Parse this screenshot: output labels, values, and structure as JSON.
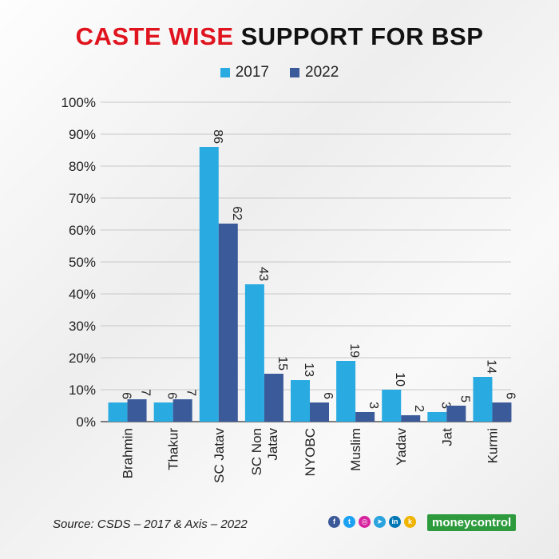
{
  "title": {
    "part1": "CASTE WISE",
    "part2": "SUPPORT FOR BSP"
  },
  "legend": [
    {
      "label": "2017",
      "color": "#29abe2"
    },
    {
      "label": "2022",
      "color": "#3b5a9a"
    }
  ],
  "chart_data": {
    "type": "bar",
    "title": "CASTE WISE SUPPORT FOR BSP",
    "categories": [
      "Brahmin",
      "Thakur",
      "SC Jatav",
      "SC Non Jatav",
      "NYOBC",
      "Muslim",
      "Yadav",
      "Jat",
      "Kurmi"
    ],
    "category_lines": [
      [
        "Brahmin"
      ],
      [
        "Thakur"
      ],
      [
        "SC Jatav"
      ],
      [
        "SC Non",
        "Jatav"
      ],
      [
        "NYOBC"
      ],
      [
        "Muslim"
      ],
      [
        "Yadav"
      ],
      [
        "Jat"
      ],
      [
        "Kurmi"
      ]
    ],
    "series": [
      {
        "name": "2017",
        "color": "#29abe2",
        "values": [
          6,
          6,
          86,
          43,
          13,
          19,
          10,
          3,
          14
        ]
      },
      {
        "name": "2022",
        "color": "#3b5a9a",
        "values": [
          7,
          7,
          62,
          15,
          6,
          3,
          2,
          5,
          6
        ]
      }
    ],
    "ylim": [
      0,
      100
    ],
    "yticks": [
      "0%",
      "10%",
      "20%",
      "30%",
      "40%",
      "50%",
      "60%",
      "70%",
      "80%",
      "90%",
      "100%"
    ],
    "xlabel": "",
    "ylabel": "",
    "grid": true
  },
  "footer": {
    "source": "Source: CSDS – 2017 & Axis – 2022",
    "brand": "moneycontrol"
  },
  "social_icons": [
    {
      "name": "facebook-icon",
      "glyph": "f",
      "color": "#3b5998"
    },
    {
      "name": "twitter-icon",
      "glyph": "t",
      "color": "#1da1f2"
    },
    {
      "name": "instagram-icon",
      "glyph": "◎",
      "color": "#d6249f"
    },
    {
      "name": "telegram-icon",
      "glyph": "➤",
      "color": "#2aa3df"
    },
    {
      "name": "linkedin-icon",
      "glyph": "in",
      "color": "#0077b5"
    },
    {
      "name": "koo-icon",
      "glyph": "k",
      "color": "#f0b400"
    }
  ]
}
